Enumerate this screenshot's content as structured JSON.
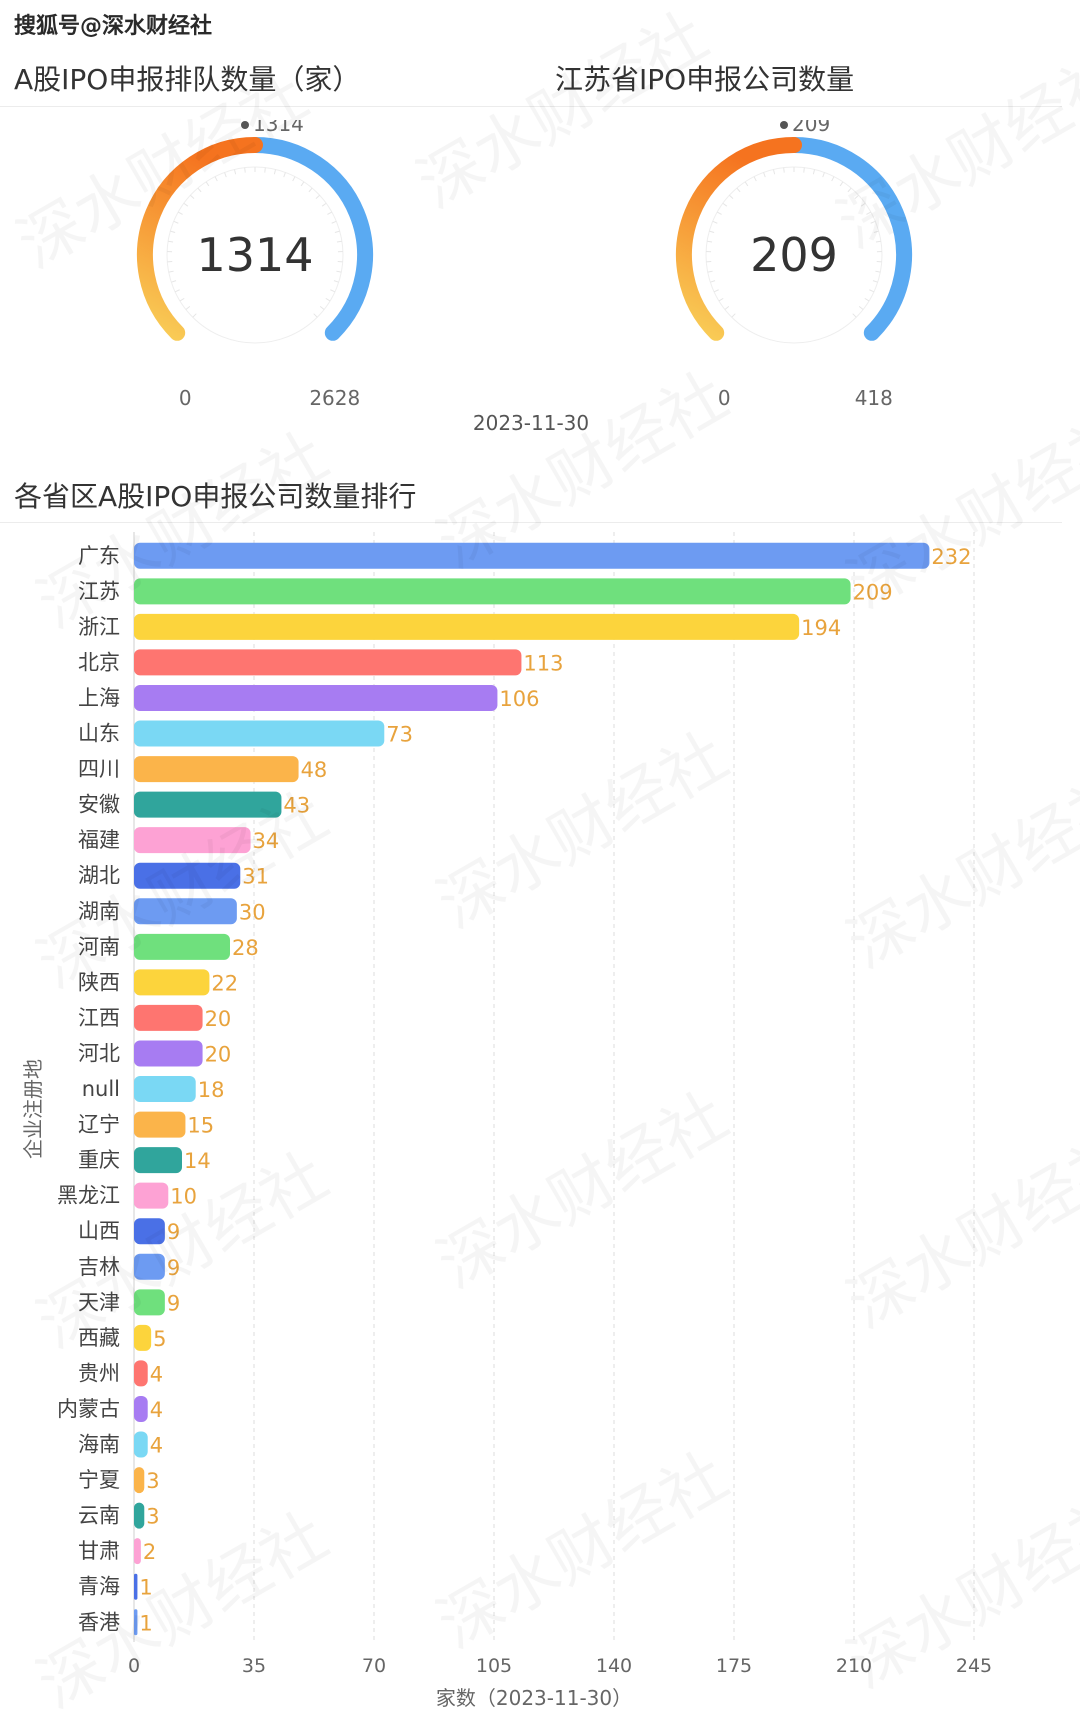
{
  "source_label": "搜狐号@深水财经社",
  "watermark": "深水财经社",
  "gauge_date": "2023-11-30",
  "gauges": [
    {
      "title": "A股IPO申报排队数量（家）",
      "value": 1314,
      "min": 0,
      "max": 2628,
      "value_label": "1314",
      "min_label": "0",
      "max_label": "2628"
    },
    {
      "title": "江苏省IPO申报公司数量",
      "value": 209,
      "min": 0,
      "max": 418,
      "value_label": "209",
      "min_label": "0",
      "max_label": "418"
    }
  ],
  "chart_data": {
    "type": "bar",
    "orientation": "horizontal",
    "title": "各省区A股IPO申报公司数量排行",
    "xlabel": "家数（2023-11-30）",
    "ylabel": "企业注册地",
    "xlim": [
      0,
      245
    ],
    "xticks": [
      0,
      35,
      70,
      105,
      140,
      175,
      210,
      245
    ],
    "grid": true,
    "categories": [
      "广东",
      "江苏",
      "浙江",
      "北京",
      "上海",
      "山东",
      "四川",
      "安徽",
      "福建",
      "湖北",
      "湖南",
      "河南",
      "陕西",
      "江西",
      "河北",
      "null",
      "辽宁",
      "重庆",
      "黑龙江",
      "山西",
      "吉林",
      "天津",
      "西藏",
      "贵州",
      "内蒙古",
      "海南",
      "宁夏",
      "云南",
      "甘肃",
      "青海",
      "香港"
    ],
    "values": [
      232,
      209,
      194,
      113,
      106,
      73,
      48,
      43,
      34,
      31,
      30,
      28,
      22,
      20,
      20,
      18,
      15,
      14,
      10,
      9,
      9,
      9,
      5,
      4,
      4,
      4,
      3,
      3,
      2,
      1,
      1
    ],
    "colors": [
      "#6d9bf2",
      "#6fe07d",
      "#fcd43c",
      "#fe7570",
      "#a77cf2",
      "#7ad8f4",
      "#fbb44a",
      "#30a59c",
      "#fda2d4",
      "#4a70e6"
    ],
    "label_color": "#e8a33d"
  }
}
